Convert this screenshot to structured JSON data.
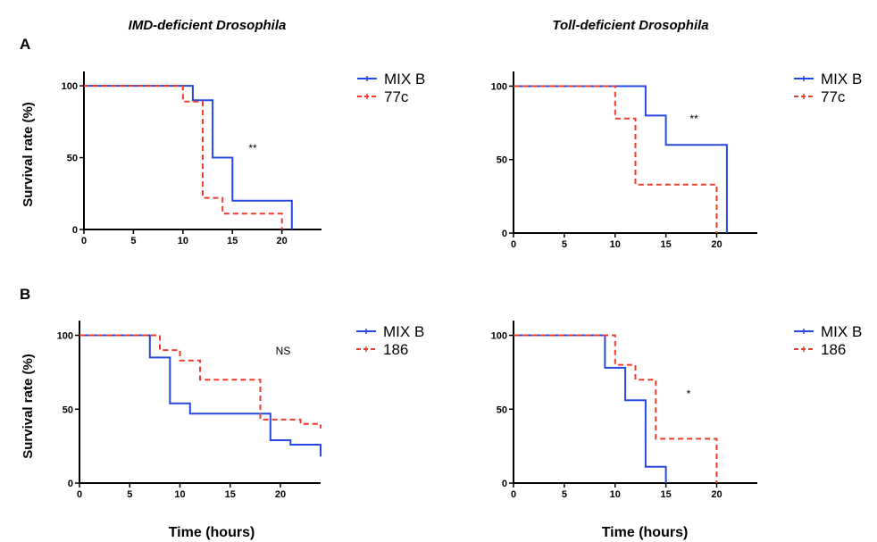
{
  "figure": {
    "col_titles": [
      "IMD-deficient Drosophila",
      "Toll-deficient Drosophila"
    ],
    "row_labels": [
      "A",
      "B"
    ],
    "ylabel": "Survival rate (%)",
    "xlabel": "Time (hours)"
  },
  "colors": {
    "MIX B": "#2748e0",
    "77c": "#ef3b2c",
    "186": "#ef3b2c"
  },
  "chart_data": [
    {
      "type": "line",
      "step": true,
      "x_ticks": [
        0,
        5,
        10,
        15,
        20
      ],
      "xlim": [
        0,
        24
      ],
      "y_ticks": [
        0,
        50,
        100
      ],
      "ylim": [
        0,
        110
      ],
      "annotation": "**",
      "series": [
        {
          "name": "MIX B",
          "style": "solid",
          "x": [
            0,
            11,
            11,
            13,
            13,
            15,
            15,
            21,
            21
          ],
          "y": [
            100,
            100,
            90,
            90,
            50,
            50,
            20,
            20,
            0
          ]
        },
        {
          "name": "77c",
          "style": "dashed",
          "x": [
            0,
            10,
            10,
            12,
            12,
            14,
            14,
            20,
            20
          ],
          "y": [
            100,
            100,
            89,
            89,
            22,
            22,
            11,
            11,
            0
          ]
        }
      ]
    },
    {
      "type": "line",
      "step": true,
      "x_ticks": [
        0,
        5,
        10,
        15,
        20
      ],
      "xlim": [
        0,
        24
      ],
      "y_ticks": [
        0,
        50,
        100
      ],
      "ylim": [
        0,
        110
      ],
      "annotation": "**",
      "series": [
        {
          "name": "MIX B",
          "style": "solid",
          "x": [
            0,
            13,
            13,
            15,
            15,
            21,
            21
          ],
          "y": [
            100,
            100,
            80,
            80,
            60,
            60,
            0
          ]
        },
        {
          "name": "77c",
          "style": "dashed",
          "x": [
            0,
            10,
            10,
            12,
            12,
            20,
            20
          ],
          "y": [
            100,
            100,
            78,
            78,
            33,
            33,
            0
          ]
        }
      ]
    },
    {
      "type": "line",
      "step": true,
      "x_ticks": [
        0,
        5,
        10,
        15,
        20
      ],
      "xlim": [
        0,
        24
      ],
      "y_ticks": [
        0,
        50,
        100
      ],
      "ylim": [
        0,
        110
      ],
      "annotation": "NS",
      "series": [
        {
          "name": "MIX B",
          "style": "solid",
          "x": [
            0,
            7,
            7,
            9,
            9,
            11,
            11,
            19,
            19,
            21,
            21,
            24,
            24
          ],
          "y": [
            100,
            100,
            85,
            85,
            54,
            54,
            47,
            47,
            29,
            29,
            26,
            26,
            18
          ]
        },
        {
          "name": "186",
          "style": "dashed",
          "x": [
            0,
            8,
            8,
            10,
            10,
            12,
            12,
            18,
            18,
            22,
            22,
            24,
            24
          ],
          "y": [
            100,
            100,
            90,
            90,
            83,
            83,
            70,
            70,
            43,
            43,
            40,
            40,
            37
          ]
        }
      ]
    },
    {
      "type": "line",
      "step": true,
      "x_ticks": [
        0,
        5,
        10,
        15,
        20
      ],
      "xlim": [
        0,
        24
      ],
      "y_ticks": [
        0,
        50,
        100
      ],
      "ylim": [
        0,
        110
      ],
      "annotation": "*",
      "series": [
        {
          "name": "MIX B",
          "style": "solid",
          "x": [
            0,
            9,
            9,
            11,
            11,
            13,
            13,
            15,
            15
          ],
          "y": [
            100,
            100,
            78,
            78,
            56,
            56,
            11,
            11,
            0
          ]
        },
        {
          "name": "186",
          "style": "dashed",
          "x": [
            0,
            10,
            10,
            12,
            12,
            14,
            14,
            20,
            20
          ],
          "y": [
            100,
            100,
            80,
            80,
            70,
            70,
            30,
            30,
            0
          ]
        }
      ]
    }
  ]
}
